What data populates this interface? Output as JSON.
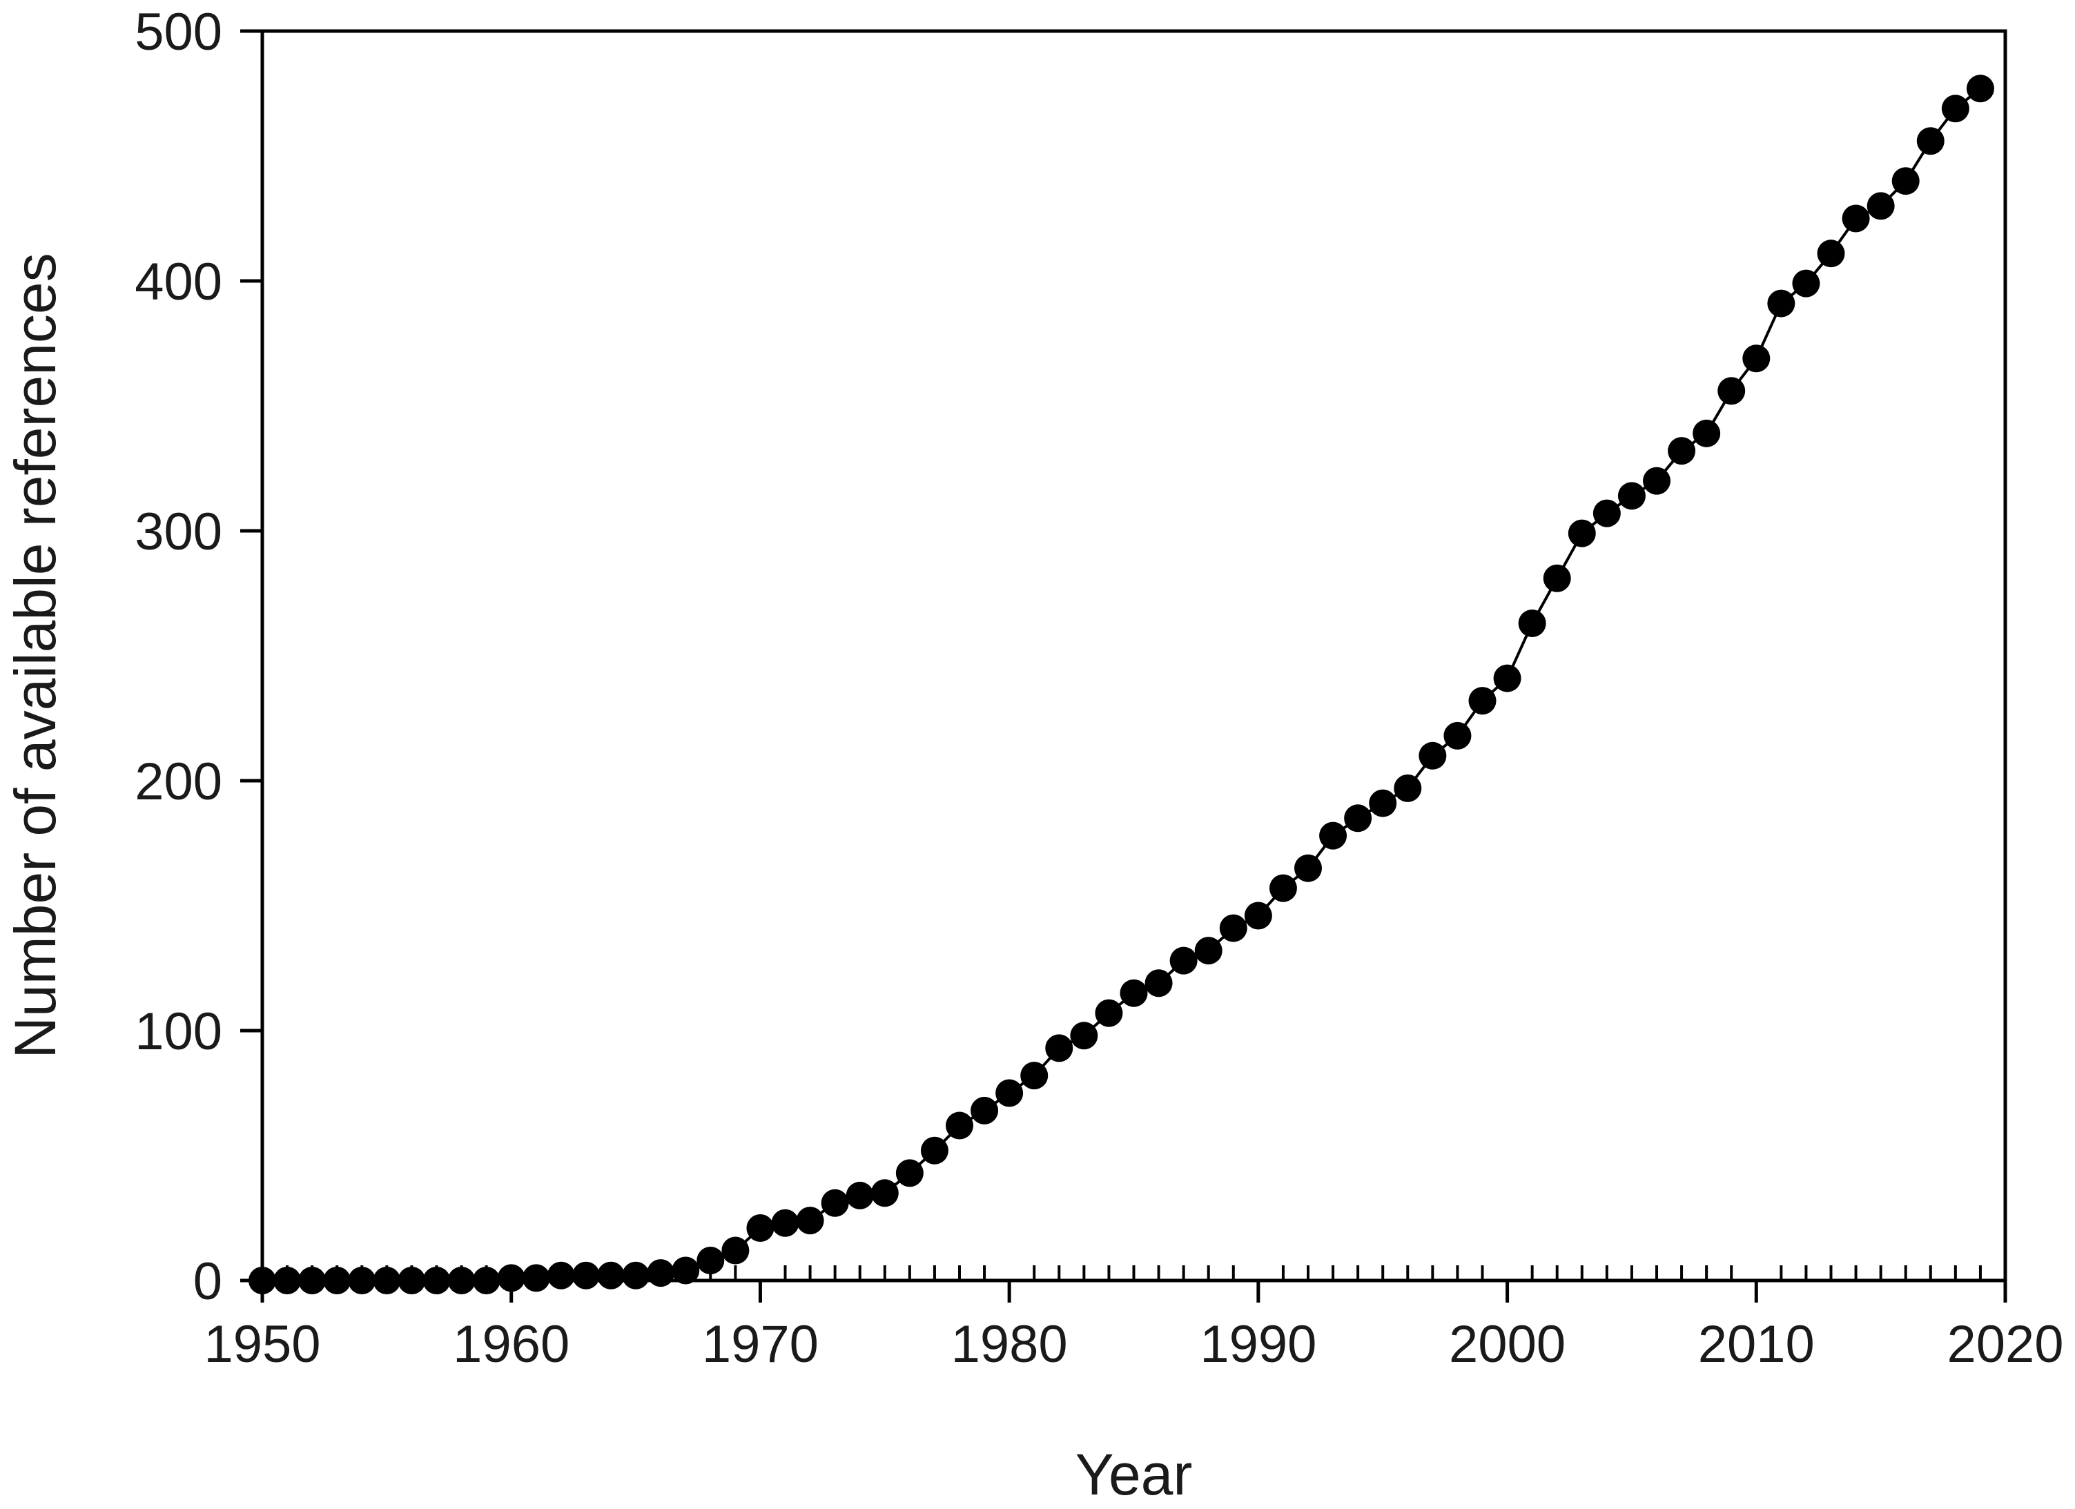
{
  "chart_data": {
    "type": "scatter",
    "title": "",
    "xlabel": "Year",
    "ylabel": "Number of available references",
    "xlim": [
      1950,
      2020
    ],
    "ylim": [
      0,
      500
    ],
    "x_major_ticks": [
      1950,
      1960,
      1970,
      1980,
      1990,
      2000,
      2010,
      2020
    ],
    "y_major_ticks": [
      0,
      100,
      200,
      300,
      400,
      500
    ],
    "x_minor_tick_step": 1,
    "grid": false,
    "connected_line": true,
    "marker": "filled-circle",
    "colors": {
      "marker": "#000000",
      "line": "#000000",
      "axis": "#000000"
    },
    "series": [
      {
        "x": [
          1950,
          1951,
          1952,
          1953,
          1954,
          1955,
          1956,
          1957,
          1958,
          1959,
          1960,
          1961,
          1962,
          1963,
          1964,
          1965,
          1966,
          1967,
          1968,
          1969,
          1970,
          1971,
          1972,
          1973,
          1974,
          1975,
          1976,
          1977,
          1978,
          1979,
          1980,
          1981,
          1982,
          1983,
          1984,
          1985,
          1986,
          1987,
          1988,
          1989,
          1990,
          1991,
          1992,
          1993,
          1994,
          1995,
          1996,
          1997,
          1998,
          1999,
          2000,
          2001,
          2002,
          2003,
          2004,
          2005,
          2006,
          2007,
          2008,
          2009,
          2010,
          2011,
          2012,
          2013,
          2014,
          2015,
          2016,
          2017,
          2018,
          2019
        ],
        "y": [
          0,
          0,
          0,
          0,
          0,
          0,
          0,
          0,
          0,
          0,
          1,
          1,
          2,
          2,
          2,
          2,
          3,
          4,
          8,
          12,
          21,
          23,
          24,
          31,
          34,
          35,
          43,
          52,
          62,
          68,
          75,
          82,
          93,
          98,
          107,
          115,
          119,
          128,
          132,
          141,
          146,
          157,
          165,
          178,
          185,
          191,
          197,
          210,
          218,
          232,
          241,
          263,
          281,
          299,
          307,
          314,
          320,
          332,
          339,
          356,
          369,
          391,
          399,
          411,
          425,
          430,
          440,
          456,
          469,
          477
        ]
      }
    ]
  }
}
